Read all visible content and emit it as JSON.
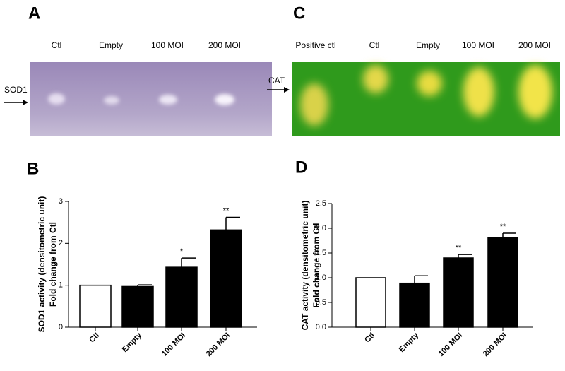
{
  "gels": [
    {
      "panel": "A",
      "marker": "SOD1",
      "lanes": [
        "Ctl",
        "Empty",
        "100 MOI",
        "200 MOI"
      ]
    },
    {
      "panel": "C",
      "marker": "CAT",
      "lanes": [
        "Positive ctl",
        "Ctl",
        "Empty",
        "100 MOI",
        "200 MOI"
      ]
    }
  ],
  "chart_data": [
    {
      "type": "bar",
      "panel": "B",
      "ylabel": [
        "SOD1 activity (densitometric unit)",
        "Fold change from Ctl"
      ],
      "categories": [
        "Ctl",
        "Empty",
        "100 MOI",
        "200 MOI"
      ],
      "values": [
        1.0,
        0.97,
        1.43,
        2.32
      ],
      "errors": [
        0,
        0.04,
        0.22,
        0.3
      ],
      "significance": [
        null,
        null,
        "*",
        "**"
      ],
      "colors": [
        "#ffffff",
        "#000000",
        "#000000",
        "#000000"
      ],
      "ylim": [
        0,
        3
      ],
      "yticks": [
        0,
        1,
        2,
        3
      ]
    },
    {
      "type": "bar",
      "panel": "D",
      "ylabel": [
        "CAT activity (densitometric unit)",
        "Fold change from Ctl"
      ],
      "categories": [
        "Ctl",
        "Empty",
        "100 MOI",
        "200 MOI"
      ],
      "values": [
        1.0,
        0.89,
        1.4,
        1.81
      ],
      "errors": [
        0,
        0.15,
        0.07,
        0.09
      ],
      "significance": [
        null,
        null,
        "**",
        "**"
      ],
      "colors": [
        "#ffffff",
        "#000000",
        "#000000",
        "#000000"
      ],
      "ylim": [
        0,
        2.5
      ],
      "yticks": [
        {
          "value": 0,
          "label": "0.0"
        },
        0.5,
        {
          "value": 1,
          "label": "1.0"
        },
        1.5,
        {
          "value": 2,
          "label": "2.0"
        },
        2.5
      ]
    }
  ]
}
